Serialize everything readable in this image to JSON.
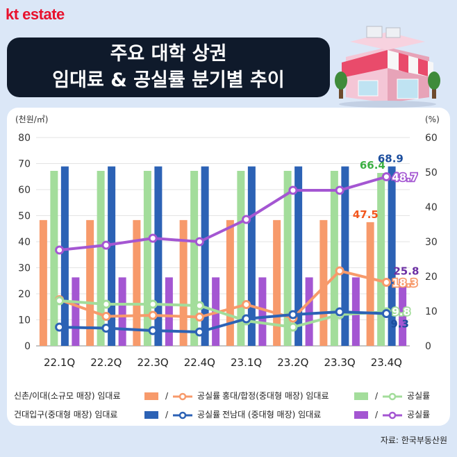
{
  "brand": {
    "logo_text": "kt estate",
    "accent": "#e8112d"
  },
  "banner": {
    "line1": "주요 대학 상권",
    "line2": "임대료 & 공실률 분기별 추이"
  },
  "source": "자료: 한국부동산원",
  "chart_data": {
    "type": "bar",
    "categories": [
      "22.1Q",
      "22.2Q",
      "22.3Q",
      "22.4Q",
      "23.1Q",
      "23.2Q",
      "23.3Q",
      "23.4Q"
    ],
    "left_axis": {
      "unit": "(천원/㎡)",
      "ylim": [
        0,
        80
      ],
      "ticks": [
        0,
        10,
        20,
        30,
        40,
        50,
        60,
        70,
        80
      ]
    },
    "right_axis": {
      "unit": "(%)",
      "ylim": [
        0,
        60
      ],
      "ticks": [
        0,
        10,
        20,
        30,
        40,
        50,
        60
      ]
    },
    "bar_series": [
      {
        "name": "신촌/이대(소규모 매장) 임대료",
        "color": "#f79a6b",
        "values": [
          48.3,
          48.3,
          48.3,
          48.3,
          48.3,
          48.3,
          48.3,
          47.5
        ]
      },
      {
        "name": "홍대/합정(중대형 매장) 임대료",
        "color": "#a3dd9b",
        "values": [
          67.2,
          67.2,
          67.2,
          67.2,
          67.2,
          67.2,
          67.2,
          66.4
        ]
      },
      {
        "name": "건대입구(중대형 매장) 임대료",
        "color": "#2c62b5",
        "values": [
          68.9,
          68.9,
          68.9,
          68.9,
          68.9,
          68.9,
          68.9,
          68.9
        ]
      },
      {
        "name": "전남대 (중대형 매장) 임대료",
        "color": "#a456d2",
        "values": [
          26.3,
          26.3,
          26.3,
          26.3,
          26.3,
          26.3,
          26.3,
          25.8
        ]
      }
    ],
    "line_series": [
      {
        "name": "신촌/이대(소규모 매장) 공실률",
        "color": "#f79a6b",
        "values": [
          13.3,
          8.5,
          8.8,
          8.3,
          11.9,
          8.0,
          21.6,
          18.3
        ]
      },
      {
        "name": "홍대/합정(중대형 매장) 공실률",
        "color": "#a3dd9b",
        "values": [
          13.0,
          12.0,
          12.0,
          11.6,
          7.2,
          5.4,
          9.0,
          9.8
        ]
      },
      {
        "name": "건대입구(중대형 매장) 공실률",
        "color": "#2c62b5",
        "values": [
          5.4,
          5.1,
          4.4,
          4.0,
          7.8,
          9.0,
          9.8,
          9.3
        ]
      },
      {
        "name": "전남대 (중대형 매장) 공실률",
        "color": "#a456d2",
        "values": [
          27.6,
          29.0,
          31.0,
          30.0,
          36.4,
          44.8,
          44.8,
          48.7
        ]
      }
    ],
    "annotations": [
      {
        "text": "47.5",
        "color": "#f2561d"
      },
      {
        "text": "66.4",
        "color": "#3cb043"
      },
      {
        "text": "68.9",
        "color": "#1c4e9e"
      },
      {
        "text": "48.7",
        "color": "#ffffff"
      },
      {
        "text": "25.8",
        "color": "#6b2fa3"
      },
      {
        "text": "18.3",
        "color": "#ffffff"
      },
      {
        "text": "9.8",
        "color": "#ffffff"
      },
      {
        "text": "9.3",
        "color": "#1c4e9e"
      }
    ],
    "grid": true,
    "legend_position": "bottom"
  },
  "legend": {
    "sep": "/",
    "items": [
      {
        "label": "신촌/이대(소규모 매장) 임대료",
        "line_label": "공실률",
        "color": "#f79a6b"
      },
      {
        "label": "홍대/합정(중대형 매장) 임대료",
        "line_label": "공실률",
        "color": "#a3dd9b"
      },
      {
        "label": "건대입구(중대형 매장) 임대료",
        "line_label": "공실률",
        "color": "#2c62b5"
      },
      {
        "label": "전남대 (중대형 매장) 임대료",
        "line_label": "공실률",
        "color": "#a456d2"
      }
    ]
  }
}
